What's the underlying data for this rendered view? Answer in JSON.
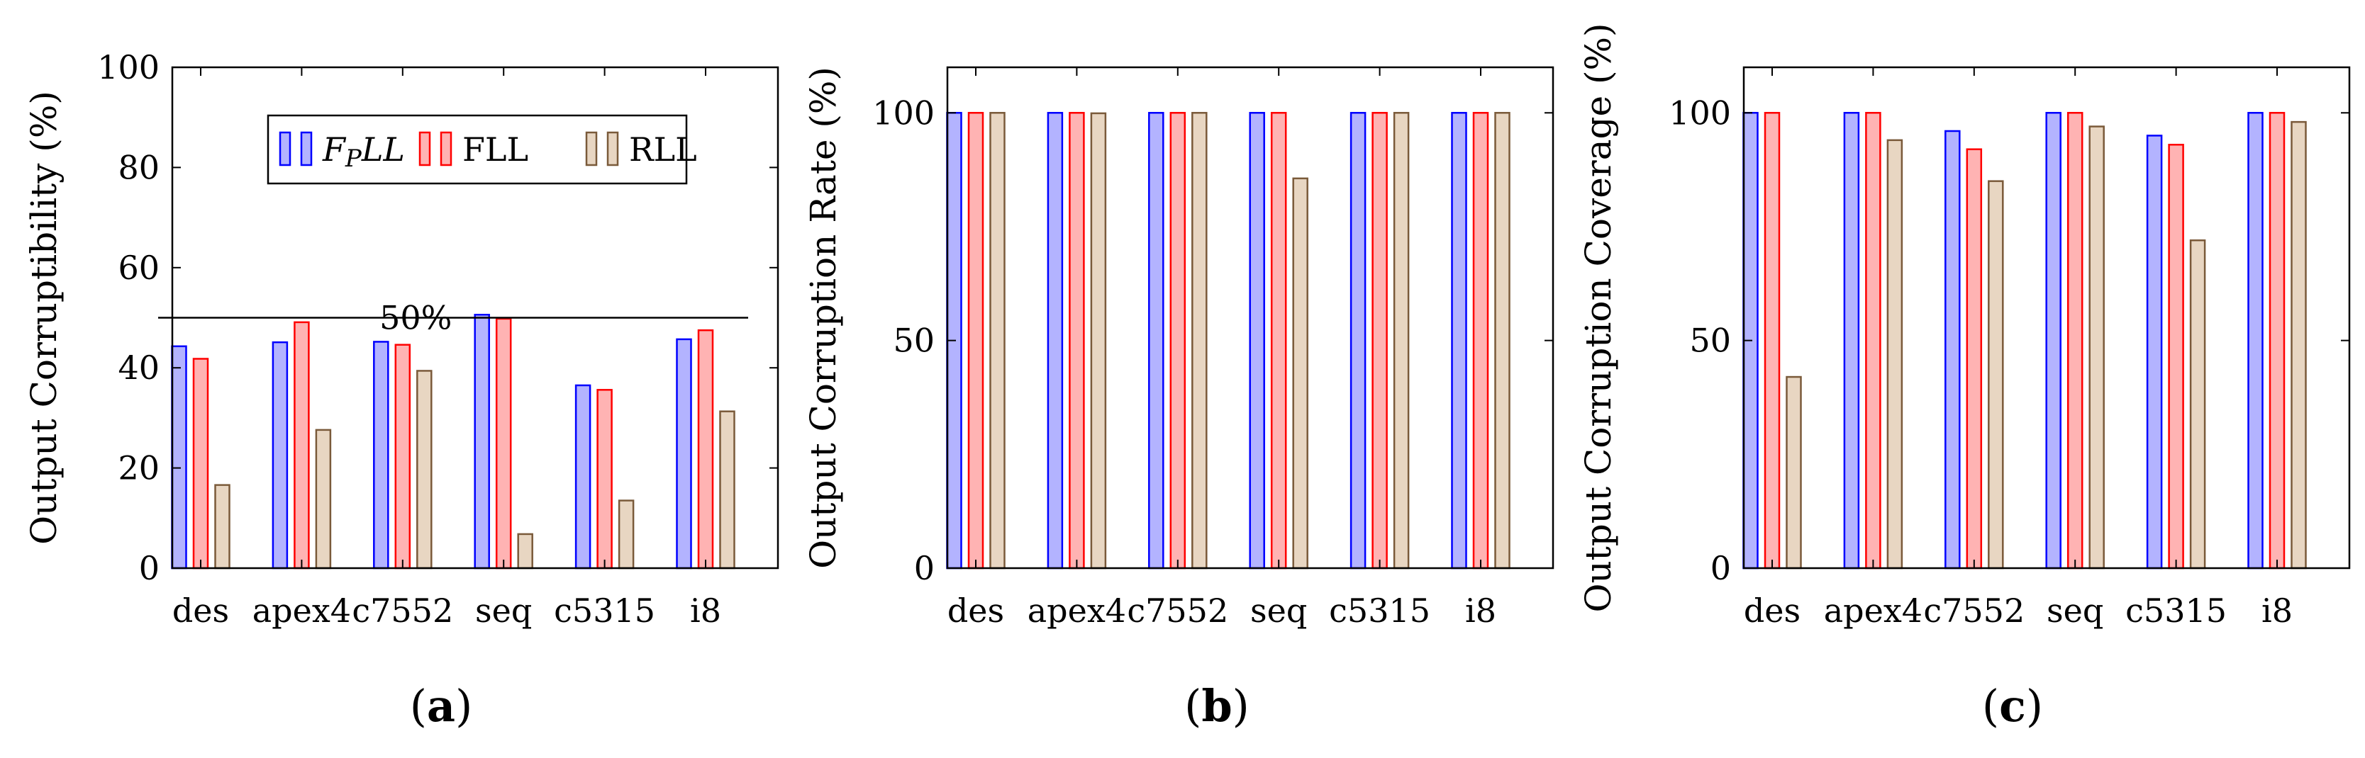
{
  "chart_data": [
    {
      "type": "bar",
      "panel_label": "(a)",
      "ylabel": "Output Corruptibility (%)",
      "ylim": [
        0,
        100
      ],
      "yticks": [
        0,
        20,
        40,
        60,
        80,
        100
      ],
      "categories": [
        "des",
        "apex4",
        "c7552",
        "seq",
        "c5315",
        "i8"
      ],
      "series": [
        {
          "name": "FPLL",
          "values": [
            44.3,
            45.1,
            45.2,
            50.6,
            36.5,
            45.7
          ]
        },
        {
          "name": "FLL",
          "values": [
            41.8,
            49.1,
            44.6,
            49.8,
            35.6,
            47.5
          ]
        },
        {
          "name": "RLL",
          "values": [
            16.6,
            27.6,
            39.4,
            6.8,
            13.5,
            31.3
          ]
        }
      ],
      "reference_line": {
        "value": 50,
        "label": "50%"
      },
      "legend": {
        "position": "top-center",
        "entries": [
          "FPLL",
          "FLL",
          "RLL"
        ]
      }
    },
    {
      "type": "bar",
      "panel_label": "(b)",
      "ylabel": "Output Corruption Rate (%)",
      "ylim": [
        0,
        110
      ],
      "yticks": [
        0,
        50,
        100
      ],
      "categories": [
        "des",
        "apex4",
        "c7552",
        "seq",
        "c5315",
        "i8"
      ],
      "series": [
        {
          "name": "FPLL",
          "values": [
            100,
            100,
            100,
            100,
            100,
            100
          ]
        },
        {
          "name": "FLL",
          "values": [
            100,
            100,
            100,
            100,
            100,
            100
          ]
        },
        {
          "name": "RLL",
          "values": [
            100,
            99.9,
            100,
            85.6,
            100,
            100
          ]
        }
      ]
    },
    {
      "type": "bar",
      "panel_label": "(c)",
      "ylabel": "Output Corruption Coverage (%)",
      "ylim": [
        0,
        110
      ],
      "yticks": [
        0,
        50,
        100
      ],
      "categories": [
        "des",
        "apex4",
        "c7552",
        "seq",
        "c5315",
        "i8"
      ],
      "series": [
        {
          "name": "FPLL",
          "values": [
            100,
            100,
            96,
            100,
            95,
            100
          ]
        },
        {
          "name": "FLL",
          "values": [
            100,
            100,
            92,
            100,
            93,
            100
          ]
        },
        {
          "name": "RLL",
          "values": [
            42,
            94,
            85,
            97,
            72,
            98
          ]
        }
      ]
    }
  ],
  "colors": {
    "FPLL": {
      "fill": "#b3b3ff",
      "stroke": "#0000ff"
    },
    "FLL": {
      "fill": "#ffb3b3",
      "stroke": "#ff0000"
    },
    "RLL": {
      "fill": "#e8d6c2",
      "stroke": "#7a5a3a"
    }
  }
}
